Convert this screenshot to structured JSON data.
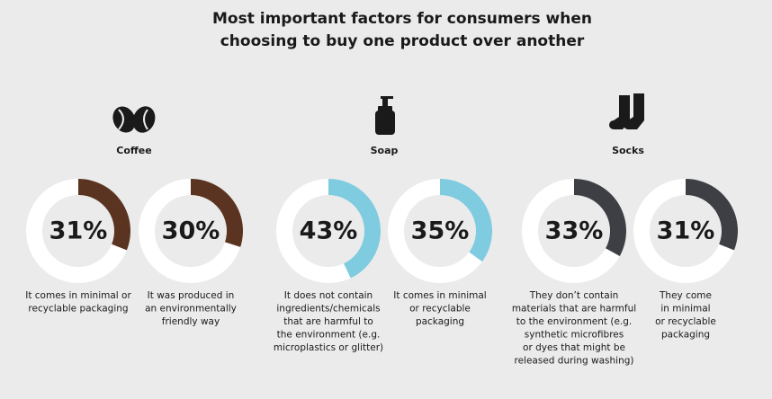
{
  "title": [
    "Most important factors for consumers when",
    "choosing to buy one product over another"
  ],
  "groups": [
    "Coffee",
    "Soap",
    "Socks"
  ],
  "chart_data": [
    {
      "type": "donut",
      "values": [
        31
      ],
      "value_labels": [
        "31%"
      ],
      "color": "#5a3420",
      "caption": [
        "It comes in minimal or",
        "recyclable packaging"
      ]
    },
    {
      "type": "donut",
      "values": [
        30
      ],
      "value_labels": [
        "30%"
      ],
      "color": "#5a3420",
      "caption": [
        "It was produced in",
        "an environmentally",
        "friendly way"
      ]
    },
    {
      "type": "donut",
      "values": [
        43
      ],
      "value_labels": [
        "43%"
      ],
      "color": "#7fcbe0",
      "caption": [
        "It does not contain",
        "ingredients/chemicals",
        "that are harmful to",
        "the environment (e.g.",
        "microplastics or glitter)"
      ]
    },
    {
      "type": "donut",
      "values": [
        35
      ],
      "value_labels": [
        "35%"
      ],
      "color": "#7fcbe0",
      "caption": [
        "It comes in minimal",
        "or recyclable",
        "packaging"
      ]
    },
    {
      "type": "donut",
      "values": [
        33
      ],
      "value_labels": [
        "33%"
      ],
      "color": "#3d3f45",
      "caption": [
        "They don’t contain",
        "materials that are harmful",
        "to the environment (e.g.",
        "synthetic microfibres",
        "or dyes that might be",
        "released during washing)"
      ]
    },
    {
      "type": "donut",
      "values": [
        31
      ],
      "value_labels": [
        "31%"
      ],
      "color": "#3d3f45",
      "caption": [
        "They come",
        "in minimal",
        "or recyclable",
        "packaging"
      ]
    }
  ]
}
